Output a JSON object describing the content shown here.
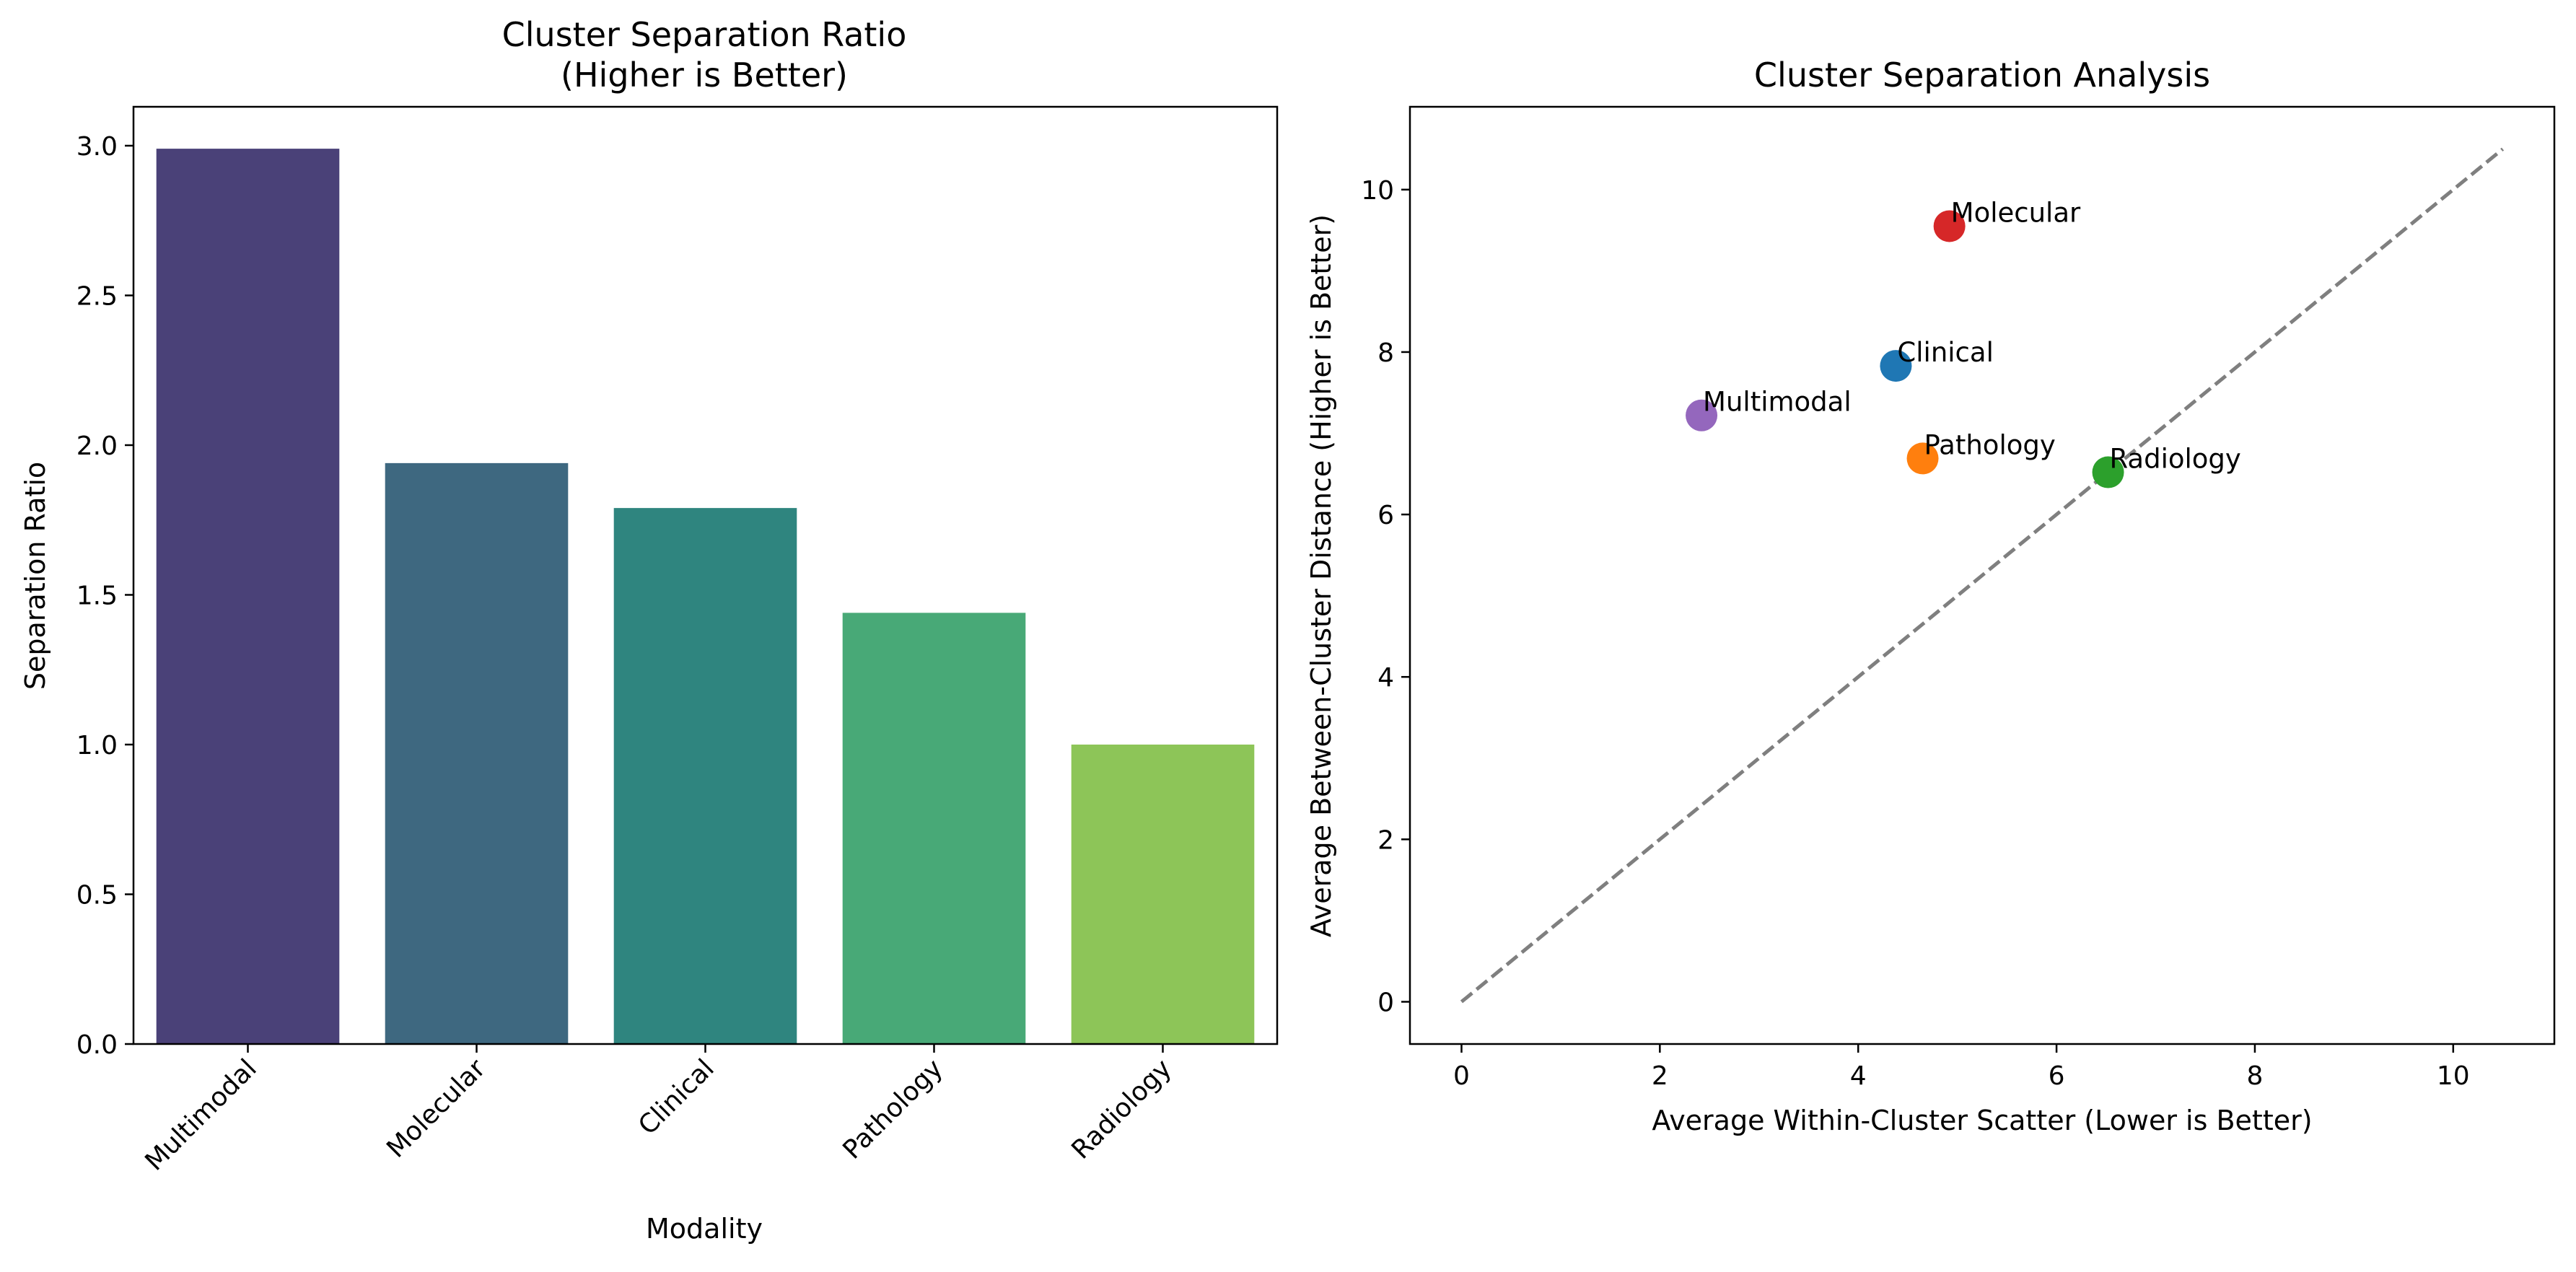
{
  "chart_data": [
    {
      "type": "bar",
      "title": "Cluster Separation Ratio",
      "subtitle": "(Higher is Better)",
      "xlabel": "Modality",
      "ylabel": "Separation Ratio",
      "categories": [
        "Multimodal",
        "Molecular",
        "Clinical",
        "Pathology",
        "Radiology"
      ],
      "values": [
        2.99,
        1.94,
        1.79,
        1.44,
        1.0
      ],
      "colors": [
        "#4a4178",
        "#3e6880",
        "#2f857f",
        "#48a977",
        "#8dc558"
      ],
      "ylim": [
        0,
        3.13
      ],
      "yticks": [
        0.0,
        0.5,
        1.0,
        1.5,
        2.0,
        2.5,
        3.0
      ],
      "ytick_labels": [
        "0.0",
        "0.5",
        "1.0",
        "1.5",
        "2.0",
        "2.5",
        "3.0"
      ],
      "grid": false
    },
    {
      "type": "scatter",
      "title": "Cluster Separation Analysis",
      "xlabel": "Average Within-Cluster Scatter (Lower is Better)",
      "ylabel": "Average Between-Cluster Distance (Higher is Better)",
      "points": [
        {
          "label": "Molecular",
          "x": 4.92,
          "y": 9.55,
          "color": "#d62728"
        },
        {
          "label": "Clinical",
          "x": 4.38,
          "y": 7.83,
          "color": "#1f77b4"
        },
        {
          "label": "Multimodal",
          "x": 2.42,
          "y": 7.22,
          "color": "#9467bd"
        },
        {
          "label": "Pathology",
          "x": 4.65,
          "y": 6.69,
          "color": "#ff7f0e"
        },
        {
          "label": "Radiology",
          "x": 6.52,
          "y": 6.52,
          "color": "#2ca02c"
        }
      ],
      "reference_line": {
        "x": [
          0,
          10.5
        ],
        "y": [
          0,
          10.5
        ],
        "style": "dashed",
        "color": "#7f7f7f"
      },
      "xlim": [
        -0.52,
        11.02
      ],
      "ylim": [
        -0.52,
        11.02
      ],
      "xticks": [
        0,
        2,
        4,
        6,
        8,
        10
      ],
      "yticks": [
        0,
        2,
        4,
        6,
        8,
        10
      ],
      "grid": false
    }
  ]
}
